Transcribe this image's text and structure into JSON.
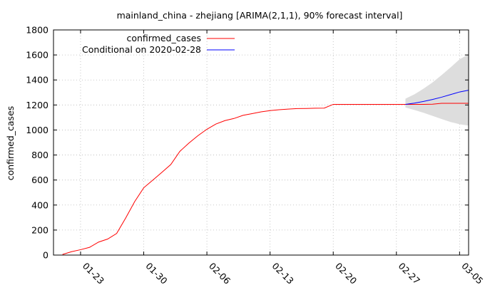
{
  "chart_data": {
    "type": "line",
    "title": "mainland_china - zhejiang [ARIMA(2,1,1), 90% forecast interval]",
    "xlabel": "",
    "ylabel": "confirmed_cases",
    "ylim": [
      0,
      1800
    ],
    "yticks": [
      0,
      200,
      400,
      600,
      800,
      1000,
      1200,
      1400,
      1600,
      1800
    ],
    "xlim": [
      "2020-01-20",
      "2020-03-06"
    ],
    "xticks": [
      "2020-01-23",
      "2020-01-30",
      "2020-02-06",
      "2020-02-13",
      "2020-02-20",
      "2020-02-27",
      "2020-03-05"
    ],
    "xtick_labels": [
      "01-23",
      "01-30",
      "02-06",
      "02-13",
      "02-20",
      "02-27",
      "03-05"
    ],
    "grid": true,
    "legend_position": "top-left",
    "series": [
      {
        "name": "confirmed_cases",
        "color": "#ff0000",
        "points": [
          [
            "2020-01-21",
            5
          ],
          [
            "2020-01-22",
            27
          ],
          [
            "2020-01-23",
            43
          ],
          [
            "2020-01-24",
            62
          ],
          [
            "2020-01-25",
            104
          ],
          [
            "2020-01-26",
            128
          ],
          [
            "2020-01-27",
            173
          ],
          [
            "2020-01-28",
            296
          ],
          [
            "2020-01-29",
            428
          ],
          [
            "2020-01-30",
            538
          ],
          [
            "2020-01-31",
            599
          ],
          [
            "2020-02-01",
            661
          ],
          [
            "2020-02-02",
            724
          ],
          [
            "2020-02-03",
            829
          ],
          [
            "2020-02-04",
            895
          ],
          [
            "2020-02-05",
            954
          ],
          [
            "2020-02-06",
            1006
          ],
          [
            "2020-02-07",
            1048
          ],
          [
            "2020-02-08",
            1075
          ],
          [
            "2020-02-09",
            1092
          ],
          [
            "2020-02-10",
            1117
          ],
          [
            "2020-02-11",
            1131
          ],
          [
            "2020-02-12",
            1145
          ],
          [
            "2020-02-13",
            1155
          ],
          [
            "2020-02-14",
            1162
          ],
          [
            "2020-02-15",
            1167
          ],
          [
            "2020-02-16",
            1171
          ],
          [
            "2020-02-17",
            1172
          ],
          [
            "2020-02-18",
            1174
          ],
          [
            "2020-02-19",
            1175
          ],
          [
            "2020-02-20",
            1205
          ],
          [
            "2020-02-21",
            1205
          ],
          [
            "2020-02-22",
            1205
          ],
          [
            "2020-02-23",
            1205
          ],
          [
            "2020-02-24",
            1205
          ],
          [
            "2020-02-25",
            1205
          ],
          [
            "2020-02-26",
            1205
          ],
          [
            "2020-02-27",
            1205
          ],
          [
            "2020-02-28",
            1205
          ],
          [
            "2020-02-29",
            1205
          ],
          [
            "2020-03-01",
            1205
          ],
          [
            "2020-03-02",
            1206
          ],
          [
            "2020-03-03",
            1213
          ],
          [
            "2020-03-04",
            1213
          ],
          [
            "2020-03-05",
            1213
          ],
          [
            "2020-03-06",
            1213
          ]
        ]
      },
      {
        "name": "Conditional on 2020-02-28",
        "color": "#0000ff",
        "points": [
          [
            "2020-02-28",
            1205
          ],
          [
            "2020-02-29",
            1215
          ],
          [
            "2020-03-01",
            1228
          ],
          [
            "2020-03-02",
            1244
          ],
          [
            "2020-03-03",
            1262
          ],
          [
            "2020-03-04",
            1283
          ],
          [
            "2020-03-05",
            1304
          ],
          [
            "2020-03-06",
            1318
          ]
        ]
      }
    ],
    "forecast_band": {
      "color": "#dddddd",
      "points": [
        [
          "2020-02-28",
          1180,
          1250
        ],
        [
          "2020-02-29",
          1160,
          1285
        ],
        [
          "2020-03-01",
          1138,
          1330
        ],
        [
          "2020-03-02",
          1113,
          1380
        ],
        [
          "2020-03-03",
          1088,
          1438
        ],
        [
          "2020-03-04",
          1064,
          1500
        ],
        [
          "2020-03-05",
          1046,
          1565
        ],
        [
          "2020-03-06",
          1035,
          1605
        ]
      ]
    }
  }
}
